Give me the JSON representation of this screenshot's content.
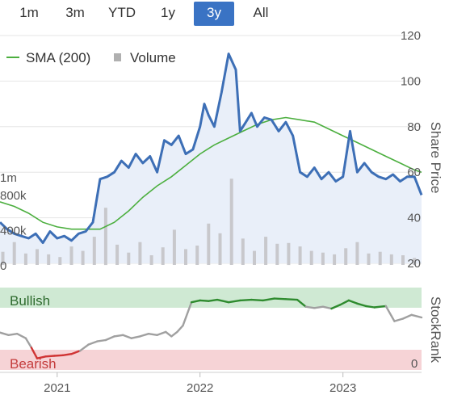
{
  "range_selector": {
    "buttons": [
      "1m",
      "3m",
      "YTD",
      "1y",
      "3y",
      "All"
    ],
    "selected": "3y"
  },
  "colors": {
    "price": "#3d6fb6",
    "sma": "#4caf3f",
    "volume": "#c8c8cc",
    "bullish_band": "#cfe9d3",
    "bearish_band": "#f6d3d6",
    "stockrank_bull": "#2e8b2e",
    "stockrank_bear": "#d03434",
    "stockrank_neutral": "#a0a0a0",
    "grid": "#e6e6e6",
    "active_button": "#3a73c4"
  },
  "chart_data": [
    {
      "type": "line",
      "legend": [
        "SMA (200)",
        "Volume"
      ],
      "legend_placement": "top-left",
      "ylabel": "Share Price",
      "y_ticks": [
        20,
        40,
        60,
        80,
        100,
        120
      ],
      "ylim": [
        20,
        120
      ],
      "volume_ticks": [
        "0",
        "400k",
        "800k",
        "1m"
      ],
      "volume_tick_values": [
        0,
        400000,
        800000,
        1000000
      ],
      "x_ticks": [
        "2021",
        "2022",
        "2023"
      ],
      "x_tick_values": [
        2021.0,
        2022.0,
        2023.0
      ],
      "xlim": [
        2020.6,
        2023.55
      ],
      "grid": true,
      "series": [
        {
          "name": "Share Price",
          "x": [
            2020.6,
            2020.65,
            2020.7,
            2020.75,
            2020.8,
            2020.85,
            2020.9,
            2020.95,
            2021.0,
            2021.05,
            2021.1,
            2021.15,
            2021.2,
            2021.25,
            2021.3,
            2021.35,
            2021.4,
            2021.45,
            2021.5,
            2021.55,
            2021.6,
            2021.65,
            2021.7,
            2021.75,
            2021.8,
            2021.85,
            2021.9,
            2021.95,
            2022.0,
            2022.03,
            2022.06,
            2022.1,
            2022.15,
            2022.2,
            2022.25,
            2022.28,
            2022.32,
            2022.36,
            2022.4,
            2022.45,
            2022.5,
            2022.55,
            2022.6,
            2022.65,
            2022.7,
            2022.75,
            2022.8,
            2022.85,
            2022.9,
            2022.95,
            2023.0,
            2023.05,
            2023.1,
            2023.15,
            2023.2,
            2023.25,
            2023.3,
            2023.35,
            2023.4,
            2023.45,
            2023.5,
            2023.55
          ],
          "values": [
            38,
            35,
            33,
            32,
            31,
            33,
            29,
            34,
            31,
            32,
            30,
            33,
            34,
            38,
            57,
            58,
            60,
            65,
            62,
            68,
            64,
            67,
            60,
            74,
            72,
            76,
            68,
            70,
            80,
            90,
            85,
            80,
            95,
            112,
            105,
            78,
            82,
            86,
            80,
            84,
            83,
            78,
            82,
            76,
            60,
            58,
            62,
            57,
            60,
            56,
            58,
            78,
            60,
            64,
            60,
            58,
            57,
            59,
            56,
            58,
            58,
            50
          ],
          "style": "thick blue line"
        },
        {
          "name": "SMA (200)",
          "x": [
            2020.6,
            2020.7,
            2020.8,
            2020.9,
            2021.0,
            2021.1,
            2021.2,
            2021.3,
            2021.4,
            2021.5,
            2021.6,
            2021.7,
            2021.8,
            2021.9,
            2022.0,
            2022.1,
            2022.2,
            2022.3,
            2022.4,
            2022.5,
            2022.6,
            2022.7,
            2022.8,
            2022.9,
            2023.0,
            2023.1,
            2023.2,
            2023.3,
            2023.4,
            2023.5,
            2023.55
          ],
          "values": [
            47,
            45,
            42,
            38,
            36,
            35,
            35,
            35,
            38,
            43,
            49,
            54,
            58,
            63,
            68,
            72,
            75,
            78,
            81,
            83,
            84,
            83,
            82,
            79,
            76,
            73,
            70,
            67,
            64,
            61,
            60
          ]
        },
        {
          "name": "Volume",
          "x": [
            2020.62,
            2020.7,
            2020.78,
            2020.86,
            2020.94,
            2021.02,
            2021.1,
            2021.18,
            2021.26,
            2021.34,
            2021.42,
            2021.5,
            2021.58,
            2021.66,
            2021.74,
            2021.82,
            2021.9,
            2021.98,
            2022.06,
            2022.14,
            2022.22,
            2022.3,
            2022.38,
            2022.46,
            2022.54,
            2022.62,
            2022.7,
            2022.78,
            2022.86,
            2022.94,
            2023.02,
            2023.1,
            2023.18,
            2023.26,
            2023.34,
            2023.42,
            2023.5
          ],
          "values": [
            150000,
            260000,
            130000,
            180000,
            120000,
            90000,
            210000,
            160000,
            320000,
            650000,
            230000,
            140000,
            260000,
            110000,
            200000,
            400000,
            180000,
            220000,
            470000,
            360000,
            980000,
            300000,
            160000,
            320000,
            240000,
            250000,
            210000,
            160000,
            140000,
            120000,
            190000,
            260000,
            130000,
            150000,
            120000,
            110000,
            80000
          ]
        }
      ]
    },
    {
      "type": "line",
      "ylabel": "StockRank",
      "band_labels": [
        "Bullish",
        "Bearish"
      ],
      "y_tick": "0",
      "y_tick_value": 0,
      "ylim": [
        0,
        100
      ],
      "series": [
        {
          "name": "StockRank",
          "x": [
            2020.6,
            2020.66,
            2020.72,
            2020.78,
            2020.82,
            2020.86,
            2020.92,
            2020.98,
            2021.04,
            2021.1,
            2021.16,
            2021.22,
            2021.28,
            2021.34,
            2021.4,
            2021.46,
            2021.52,
            2021.58,
            2021.64,
            2021.7,
            2021.76,
            2021.8,
            2021.84,
            2021.88,
            2021.94,
            2022.0,
            2022.06,
            2022.12,
            2022.2,
            2022.28,
            2022.36,
            2022.44,
            2022.52,
            2022.6,
            2022.68,
            2022.74,
            2022.8,
            2022.86,
            2022.92,
            2022.98,
            2023.04,
            2023.1,
            2023.16,
            2023.22,
            2023.3,
            2023.36,
            2023.42,
            2023.48,
            2023.55
          ],
          "values": [
            44,
            40,
            42,
            35,
            20,
            3,
            6,
            7,
            8,
            10,
            15,
            25,
            30,
            32,
            38,
            40,
            35,
            38,
            42,
            40,
            45,
            38,
            45,
            55,
            92,
            95,
            94,
            96,
            92,
            95,
            96,
            95,
            98,
            97,
            96,
            85,
            83,
            85,
            82,
            88,
            95,
            90,
            86,
            84,
            86,
            62,
            66,
            72,
            68
          ]
        }
      ]
    }
  ]
}
